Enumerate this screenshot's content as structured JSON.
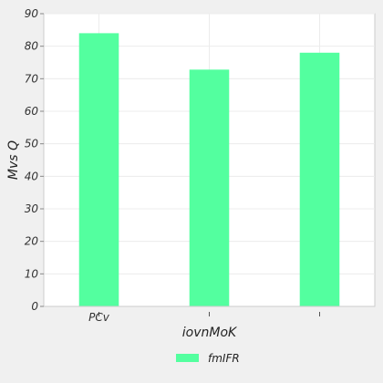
{
  "chart_data": {
    "type": "bar",
    "categories": [
      "PCv",
      "",
      ""
    ],
    "series": [
      {
        "name": "fmIFR",
        "values": [
          84,
          72.8,
          78
        ]
      }
    ],
    "xlabel": "iovnMoK",
    "ylabel": "Mvs Q",
    "ylim": [
      0,
      90
    ],
    "yticks": [
      0,
      10,
      20,
      30,
      40,
      50,
      60,
      70,
      80,
      90
    ],
    "grid": true,
    "legend_position": "bottom-center",
    "colors": {
      "bar": "#53ff9f",
      "plot_background": "#ffffff",
      "page_background": "#f0f0f0",
      "grid": "#ececec",
      "axis": "#cccccc"
    }
  }
}
